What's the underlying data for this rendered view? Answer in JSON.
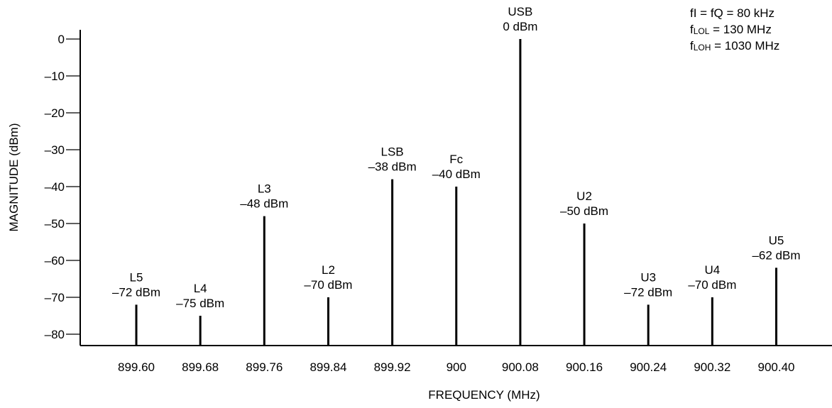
{
  "chart_data": {
    "type": "bar",
    "title": "",
    "xlabel": "FREQUENCY (MHz)",
    "ylabel": "MAGNITUDE (dBm)",
    "ylim": [
      -82,
      0
    ],
    "yticks": [
      "0",
      "–10",
      "–20",
      "–30",
      "–40",
      "–50",
      "–60",
      "–70",
      "–80"
    ],
    "ytick_values": [
      0,
      -10,
      -20,
      -30,
      -40,
      -50,
      -60,
      -70,
      -80
    ],
    "categories": [
      "899.60",
      "899.68",
      "899.76",
      "899.84",
      "899.92",
      "900",
      "900.08",
      "900.16",
      "900.24",
      "900.32",
      "900.40"
    ],
    "values": [
      -72,
      -75,
      -48,
      -70,
      -38,
      -40,
      0,
      -50,
      -72,
      -70,
      -62
    ],
    "labels": [
      {
        "name": "L5",
        "value_text": "–72 dBm"
      },
      {
        "name": "L4",
        "value_text": "–75 dBm"
      },
      {
        "name": "L3",
        "value_text": "–48 dBm"
      },
      {
        "name": "L2",
        "value_text": "–70 dBm"
      },
      {
        "name": "LSB",
        "value_text": "–38 dBm"
      },
      {
        "name": "Fc",
        "value_text": "–40 dBm"
      },
      {
        "name": "USB",
        "value_text": "0 dBm"
      },
      {
        "name": "U2",
        "value_text": "–50 dBm"
      },
      {
        "name": "U3",
        "value_text": "–72 dBm"
      },
      {
        "name": "U4",
        "value_text": "–70 dBm"
      },
      {
        "name": "U5",
        "value_text": "–62 dBm"
      }
    ],
    "annotations": [
      {
        "prefix": "fI = fQ = 80 kHz",
        "sub": "",
        "suffix": ""
      },
      {
        "prefix": "f",
        "sub": "LOL",
        "suffix": " = 130 MHz"
      },
      {
        "prefix": "f",
        "sub": "LOH",
        "suffix": " = 1030 MHz"
      }
    ],
    "grid": false,
    "colors": {
      "line": "#000000",
      "text": "#000000"
    }
  }
}
